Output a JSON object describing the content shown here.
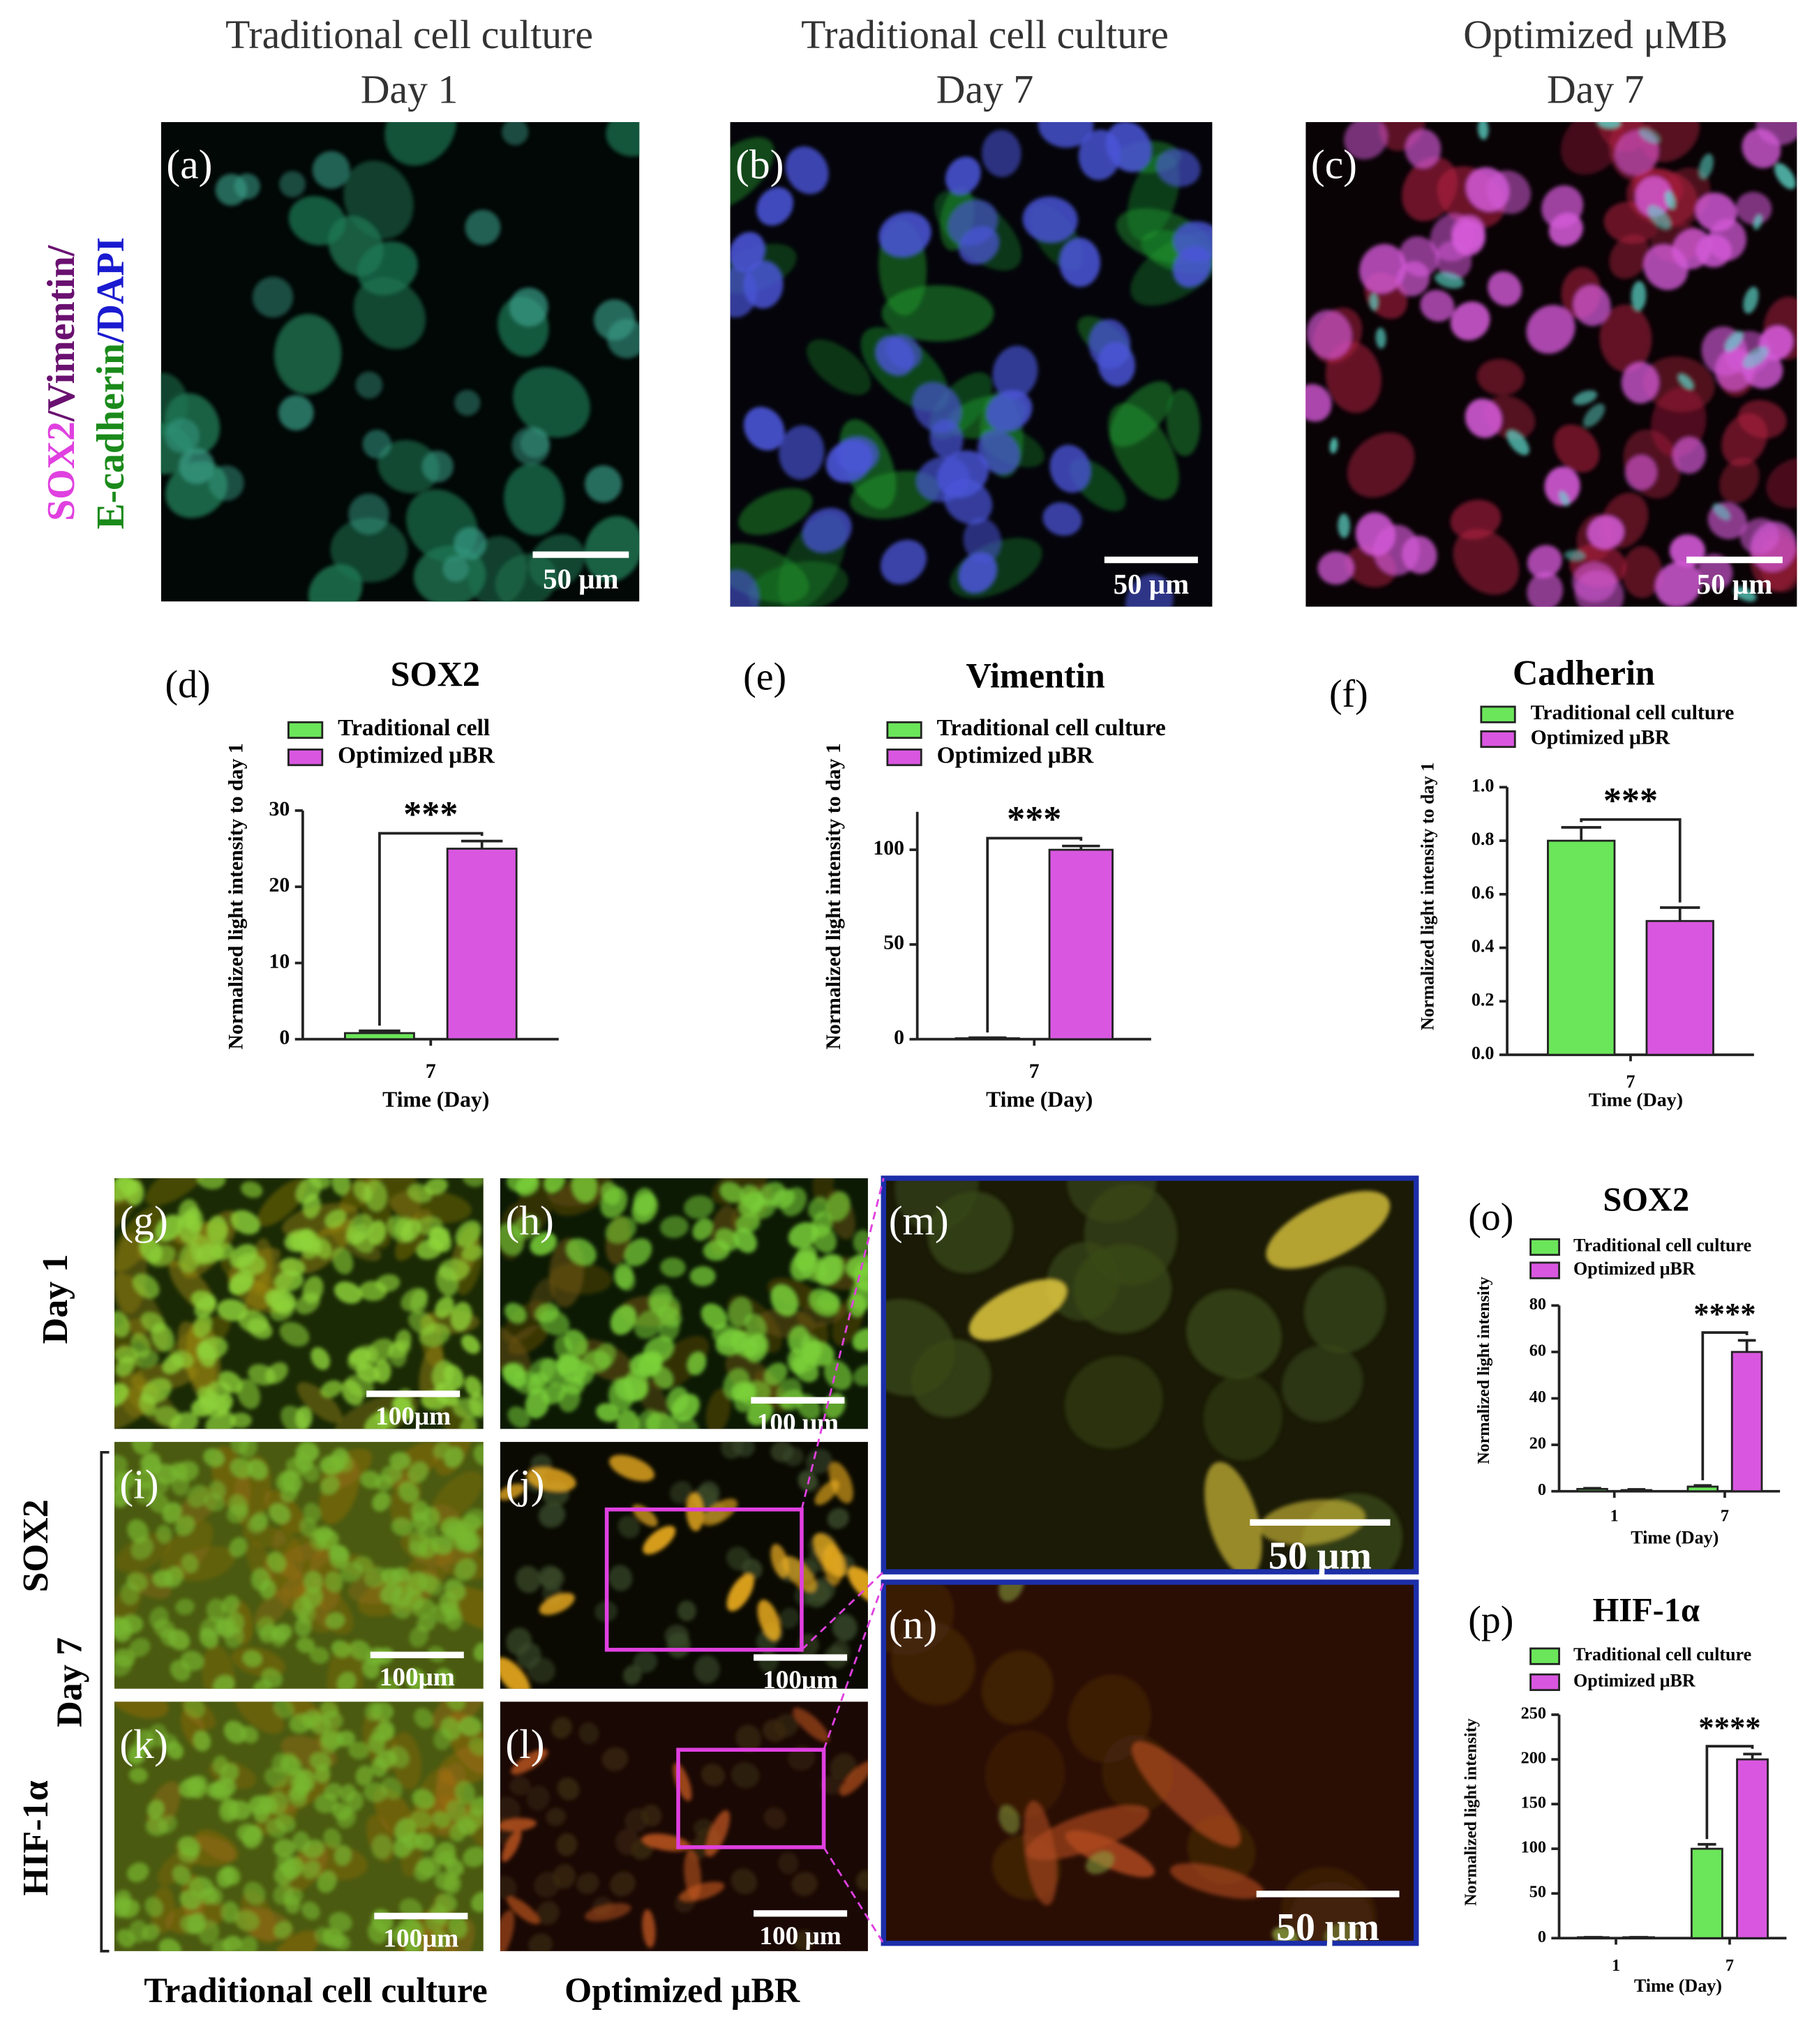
{
  "column_titles": [
    [
      "Traditional cell culture",
      "Day 1"
    ],
    [
      "Traditional cell culture",
      "Day 7"
    ],
    [
      "Optimized μMB",
      "Day 7"
    ]
  ],
  "stain_label": [
    "SOX2",
    "/Vimentin/",
    "E-cadherin",
    "/DAPI"
  ],
  "panels": [
    {
      "label": "(a)",
      "scale": "50 μm"
    },
    {
      "label": "(b)",
      "scale": "50 μm"
    },
    {
      "label": "(c)",
      "scale": "50 μm"
    },
    {
      "label": "(g)",
      "scale": "100μm"
    },
    {
      "label": "(h)",
      "scale": "100 μm"
    },
    {
      "label": "(i)",
      "scale": "100μm"
    },
    {
      "label": "(j)",
      "scale": "100μm"
    },
    {
      "label": "(k)",
      "scale": "100μm"
    },
    {
      "label": "(l)",
      "scale": "100 μm"
    },
    {
      "label": "(m)",
      "scale": "50 μm"
    },
    {
      "label": "(n)",
      "scale": "50 μm"
    }
  ],
  "row_labels": [
    "Day 1",
    "SOX2",
    "Day 7",
    "HIF-1α"
  ],
  "column_labels": [
    "Traditional cell culture",
    "Optimized μBR"
  ],
  "chart_data": [
    {
      "type": "bar",
      "panel": "(d)",
      "title": "SOX2",
      "y_label": "Normalized light intensity to day 1",
      "x_label": "Time (Day)",
      "categories": [
        "7"
      ],
      "series": [
        {
          "name": "Traditional cell",
          "color": "#6be65a",
          "values": [
            0.8
          ],
          "errors": [
            0.3
          ]
        },
        {
          "name": "Optimized μBR",
          "color": "#d957e0",
          "values": [
            25
          ],
          "errors": [
            1
          ]
        }
      ],
      "ylim": [
        0,
        30
      ],
      "yticks": [
        0,
        10,
        20,
        30
      ],
      "significance": "***"
    },
    {
      "type": "bar",
      "panel": "(e)",
      "title": "Vimentin",
      "y_label": "Normalized light intensity to day 1",
      "x_label": "Time (Day)",
      "categories": [
        "7"
      ],
      "series": [
        {
          "name": "Traditional cell culture",
          "color": "#6be65a",
          "values": [
            0.5
          ],
          "errors": [
            0.3
          ]
        },
        {
          "name": "Optimized μBR",
          "color": "#d957e0",
          "values": [
            100
          ],
          "errors": [
            2
          ]
        }
      ],
      "ylim": [
        0,
        120
      ],
      "yticks": [
        0,
        50,
        100
      ],
      "significance": "***"
    },
    {
      "type": "bar",
      "panel": "(f)",
      "title": "Cadherin",
      "y_label": "Normalized light intensity to day 1",
      "x_label": "Time (Day)",
      "categories": [
        "7"
      ],
      "series": [
        {
          "name": "Traditional cell culture",
          "color": "#6be65a",
          "values": [
            0.8
          ],
          "errors": [
            0.05
          ]
        },
        {
          "name": "Optimized μBR",
          "color": "#d957e0",
          "values": [
            0.5
          ],
          "errors": [
            0.05
          ]
        }
      ],
      "ylim": [
        0,
        1
      ],
      "yticks": [
        {
          "value": 0,
          "label": "0.0"
        },
        0.2,
        0.4,
        0.6,
        0.8,
        {
          "value": 1,
          "label": "1.0"
        }
      ],
      "significance": "***"
    },
    {
      "type": "bar",
      "panel": "(o)",
      "title": "SOX2",
      "y_label": "Normalized light intensity",
      "x_label": "Time (Day)",
      "categories": [
        "1",
        "7"
      ],
      "series": [
        {
          "name": "Traditional cell culture",
          "color": "#6be65a",
          "values": [
            1,
            2
          ],
          "errors": [
            0.3,
            0.5
          ]
        },
        {
          "name": "Optimized μBR",
          "color": "#d957e0",
          "values": [
            0.5,
            60
          ],
          "errors": [
            0.3,
            5
          ]
        }
      ],
      "ylim": [
        0,
        80
      ],
      "yticks": [
        0,
        20,
        40,
        60,
        80
      ],
      "significance": "****"
    },
    {
      "type": "bar",
      "panel": "(p)",
      "title": "HIF-1α",
      "y_label": "Normalized light intensity",
      "x_label": "Time (Day)",
      "categories": [
        "1",
        "7"
      ],
      "series": [
        {
          "name": "Traditional cell culture",
          "color": "#6be65a",
          "values": [
            1,
            100
          ],
          "errors": [
            0,
            5
          ]
        },
        {
          "name": "Optimized μBR",
          "color": "#d957e0",
          "values": [
            1,
            200
          ],
          "errors": [
            0,
            6
          ]
        }
      ],
      "ylim": [
        0,
        250
      ],
      "yticks": [
        0,
        50,
        100,
        150,
        200,
        250
      ],
      "significance": "****"
    }
  ]
}
